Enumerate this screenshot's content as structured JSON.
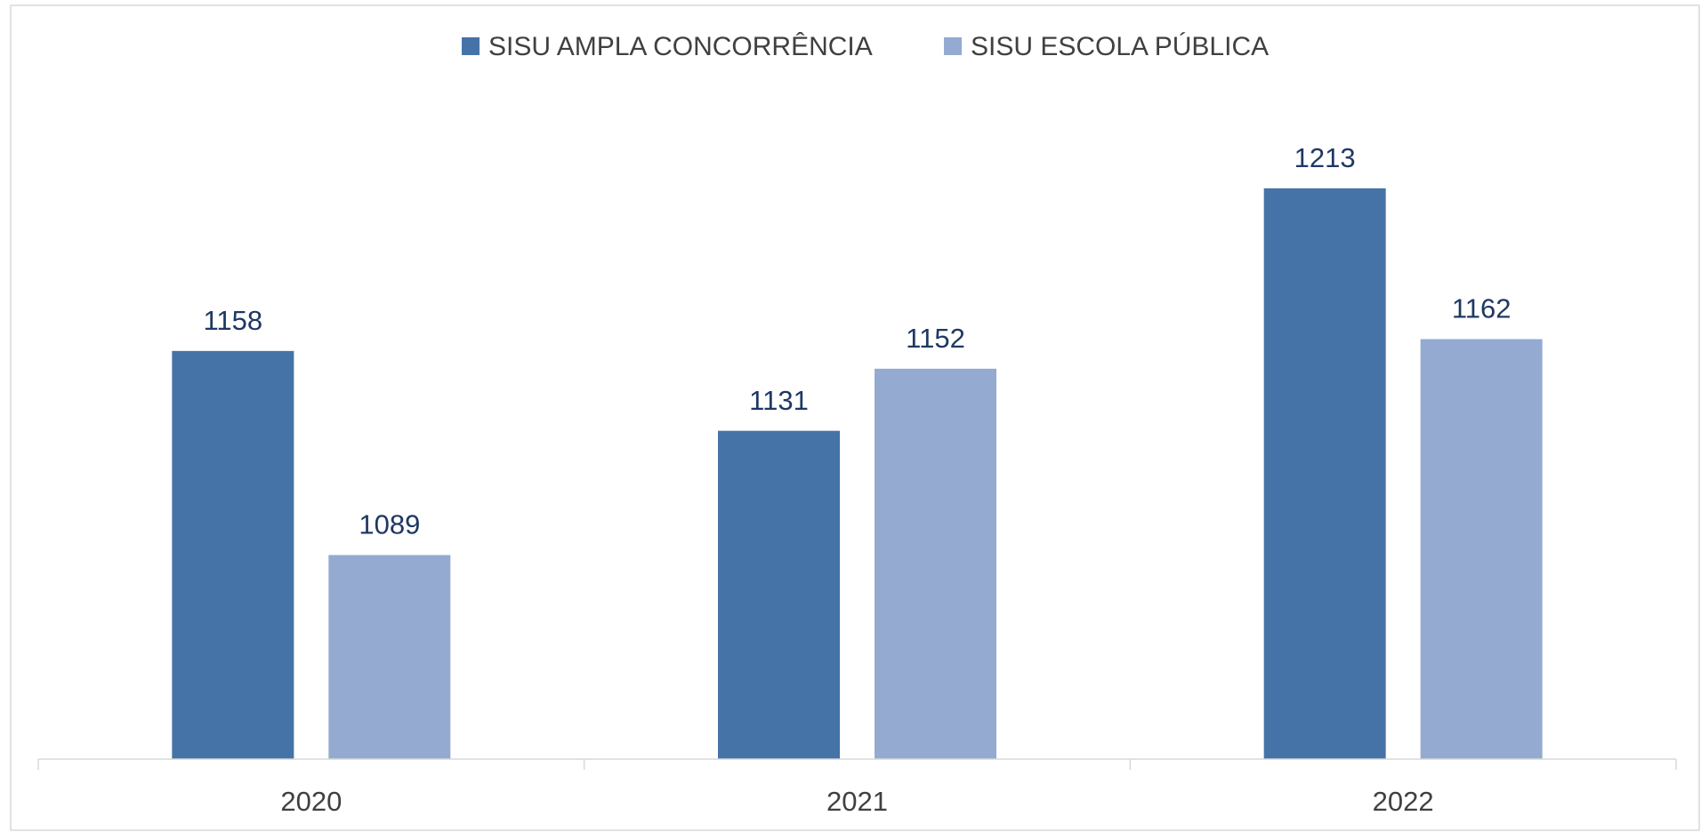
{
  "chart_data": {
    "type": "bar",
    "categories": [
      "2020",
      "2021",
      "2022"
    ],
    "series": [
      {
        "name": "SISU AMPLA CONCORRÊNCIA",
        "color": "#4573a7",
        "values": [
          1158,
          1131,
          1213
        ]
      },
      {
        "name": "SISU ESCOLA PÚBLICA",
        "color": "#95aad1",
        "values": [
          1089,
          1152,
          1162
        ]
      }
    ],
    "ylim": [
      1020,
      1240
    ],
    "legend": "top"
  }
}
